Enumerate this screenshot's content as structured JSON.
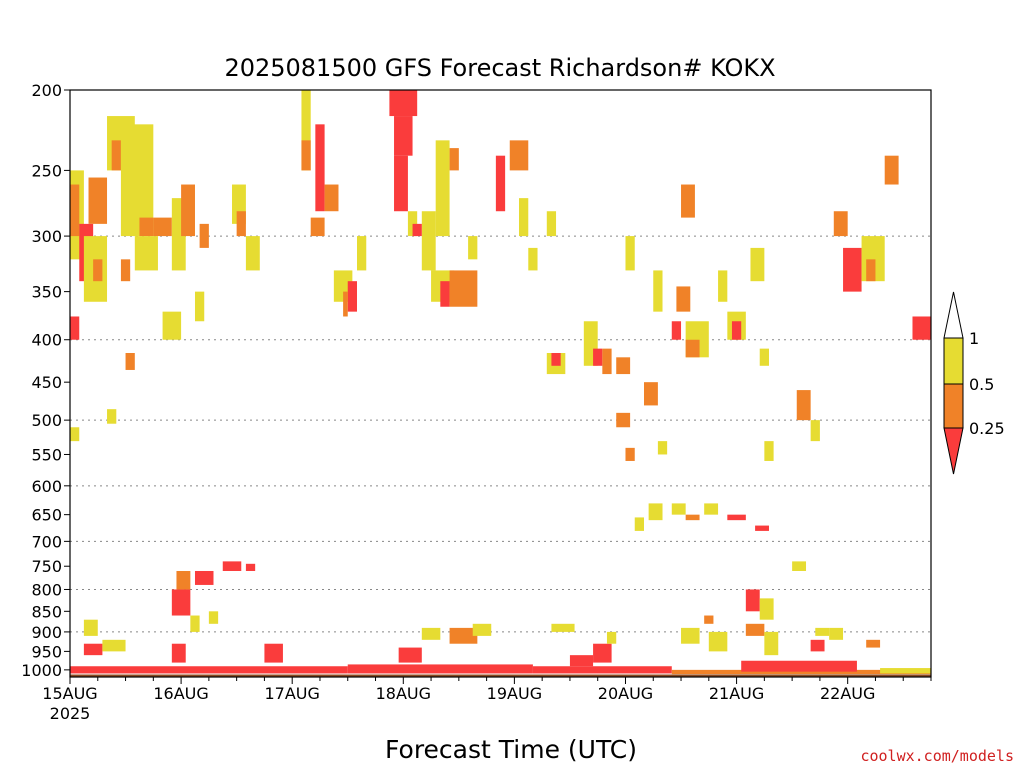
{
  "chart_data": {
    "type": "heatmap",
    "title": "2025081500 GFS Forecast Richardson# KOKX",
    "xlabel": "Forecast Time (UTC)",
    "credit": "coolwx.com/models",
    "y_levels": [
      200,
      250,
      300,
      350,
      400,
      450,
      500,
      550,
      600,
      650,
      700,
      750,
      800,
      850,
      900,
      950,
      1000
    ],
    "y_tick_labels": [
      "200",
      "250",
      "300",
      "350",
      "400",
      "450",
      "500",
      "550",
      "600",
      "650",
      "700",
      "750",
      "800",
      "850",
      "900",
      "950",
      "1000"
    ],
    "y_dotted_levels": [
      300,
      400,
      500,
      600,
      700,
      800,
      900
    ],
    "ylim": [
      1020,
      200
    ],
    "x_ticks": [
      {
        "label": "15AUG",
        "sublabel": "2025",
        "hour": 0
      },
      {
        "label": "16AUG",
        "hour": 24
      },
      {
        "label": "17AUG",
        "hour": 48
      },
      {
        "label": "18AUG",
        "hour": 72
      },
      {
        "label": "19AUG",
        "hour": 96
      },
      {
        "label": "20AUG",
        "hour": 120
      },
      {
        "label": "21AUG",
        "hour": 144
      },
      {
        "label": "22AUG",
        "hour": 168
      }
    ],
    "xlim_hours": [
      0,
      186
    ],
    "legend": {
      "placement": "right",
      "labels": [
        "1",
        "0.5",
        "0.25"
      ],
      "colors": [
        "#ffffff",
        "#e6dc32",
        "#f08228",
        "#fa3c3c"
      ]
    },
    "colors": {
      "lt_025": "#fa3c3c",
      "r025_05": "#f08228",
      "r05_1": "#e6dc32",
      "ground": "#8b4a22"
    },
    "ground_top_hpa": 1013,
    "cells": [
      {
        "h0": 0,
        "h1": 3,
        "p0": 250,
        "p1": 320,
        "c": "r05_1"
      },
      {
        "h0": 0,
        "h1": 2,
        "p0": 260,
        "p1": 300,
        "c": "r025_05"
      },
      {
        "h0": 2,
        "h1": 5,
        "p0": 290,
        "p1": 340,
        "c": "lt_025"
      },
      {
        "h0": 4,
        "h1": 8,
        "p0": 255,
        "p1": 290,
        "c": "r025_05"
      },
      {
        "h0": 3,
        "h1": 8,
        "p0": 300,
        "p1": 360,
        "c": "r05_1"
      },
      {
        "h0": 5,
        "h1": 7,
        "p0": 320,
        "p1": 340,
        "c": "r025_05"
      },
      {
        "h0": 8,
        "h1": 14,
        "p0": 215,
        "p1": 250,
        "c": "r05_1"
      },
      {
        "h0": 9,
        "h1": 11,
        "p0": 230,
        "p1": 250,
        "c": "r025_05"
      },
      {
        "h0": 11,
        "h1": 18,
        "p0": 220,
        "p1": 300,
        "c": "r05_1"
      },
      {
        "h0": 15,
        "h1": 18,
        "p0": 285,
        "p1": 300,
        "c": "r025_05"
      },
      {
        "h0": 18,
        "h1": 22,
        "p0": 285,
        "p1": 300,
        "c": "r025_05"
      },
      {
        "h0": 14,
        "h1": 19,
        "p0": 300,
        "p1": 330,
        "c": "r05_1"
      },
      {
        "h0": 11,
        "h1": 13,
        "p0": 320,
        "p1": 340,
        "c": "r025_05"
      },
      {
        "h0": 22,
        "h1": 25,
        "p0": 270,
        "p1": 330,
        "c": "r05_1"
      },
      {
        "h0": 24,
        "h1": 27,
        "p0": 260,
        "p1": 300,
        "c": "r025_05"
      },
      {
        "h0": 28,
        "h1": 30,
        "p0": 290,
        "p1": 310,
        "c": "r025_05"
      },
      {
        "h0": 20,
        "h1": 24,
        "p0": 370,
        "p1": 400,
        "c": "r05_1"
      },
      {
        "h0": 27,
        "h1": 29,
        "p0": 350,
        "p1": 380,
        "c": "r05_1"
      },
      {
        "h0": 35,
        "h1": 38,
        "p0": 260,
        "p1": 290,
        "c": "r05_1"
      },
      {
        "h0": 36,
        "h1": 38,
        "p0": 280,
        "p1": 300,
        "c": "r025_05"
      },
      {
        "h0": 38,
        "h1": 41,
        "p0": 300,
        "p1": 330,
        "c": "r05_1"
      },
      {
        "h0": 12,
        "h1": 14,
        "p0": 415,
        "p1": 435,
        "c": "r025_05"
      },
      {
        "h0": 0,
        "h1": 2,
        "p0": 375,
        "p1": 400,
        "c": "lt_025"
      },
      {
        "h0": 0,
        "h1": 2,
        "p0": 510,
        "p1": 530,
        "c": "r05_1"
      },
      {
        "h0": 8,
        "h1": 10,
        "p0": 485,
        "p1": 505,
        "c": "r05_1"
      },
      {
        "h0": 50,
        "h1": 52,
        "p0": 200,
        "p1": 250,
        "c": "r05_1"
      },
      {
        "h0": 50,
        "h1": 52,
        "p0": 230,
        "p1": 250,
        "c": "r025_05"
      },
      {
        "h0": 53,
        "h1": 55,
        "p0": 220,
        "p1": 280,
        "c": "lt_025"
      },
      {
        "h0": 55,
        "h1": 58,
        "p0": 260,
        "p1": 280,
        "c": "r025_05"
      },
      {
        "h0": 52,
        "h1": 55,
        "p0": 285,
        "p1": 300,
        "c": "r025_05"
      },
      {
        "h0": 57,
        "h1": 61,
        "p0": 330,
        "p1": 360,
        "c": "r05_1"
      },
      {
        "h0": 60,
        "h1": 62,
        "p0": 340,
        "p1": 370,
        "c": "lt_025"
      },
      {
        "h0": 59,
        "h1": 60,
        "p0": 350,
        "p1": 375,
        "c": "r025_05"
      },
      {
        "h0": 62,
        "h1": 64,
        "p0": 300,
        "p1": 330,
        "c": "r05_1"
      },
      {
        "h0": 69,
        "h1": 75,
        "p0": 200,
        "p1": 215,
        "c": "lt_025"
      },
      {
        "h0": 70,
        "h1": 74,
        "p0": 215,
        "p1": 240,
        "c": "lt_025"
      },
      {
        "h0": 70,
        "h1": 73,
        "p0": 240,
        "p1": 280,
        "c": "lt_025"
      },
      {
        "h0": 73,
        "h1": 75,
        "p0": 280,
        "p1": 300,
        "c": "r05_1"
      },
      {
        "h0": 76,
        "h1": 79,
        "p0": 280,
        "p1": 330,
        "c": "r05_1"
      },
      {
        "h0": 74,
        "h1": 76,
        "p0": 290,
        "p1": 300,
        "c": "lt_025"
      },
      {
        "h0": 79,
        "h1": 82,
        "p0": 230,
        "p1": 300,
        "c": "r05_1"
      },
      {
        "h0": 82,
        "h1": 84,
        "p0": 235,
        "p1": 250,
        "c": "r025_05"
      },
      {
        "h0": 78,
        "h1": 83,
        "p0": 330,
        "p1": 360,
        "c": "r05_1"
      },
      {
        "h0": 80,
        "h1": 82,
        "p0": 340,
        "p1": 365,
        "c": "lt_025"
      },
      {
        "h0": 82,
        "h1": 88,
        "p0": 330,
        "p1": 365,
        "c": "r025_05"
      },
      {
        "h0": 86,
        "h1": 88,
        "p0": 300,
        "p1": 320,
        "c": "r05_1"
      },
      {
        "h0": 92,
        "h1": 94,
        "p0": 240,
        "p1": 280,
        "c": "lt_025"
      },
      {
        "h0": 95,
        "h1": 99,
        "p0": 230,
        "p1": 250,
        "c": "r025_05"
      },
      {
        "h0": 97,
        "h1": 99,
        "p0": 270,
        "p1": 300,
        "c": "r05_1"
      },
      {
        "h0": 103,
        "h1": 105,
        "p0": 280,
        "p1": 300,
        "c": "r05_1"
      },
      {
        "h0": 99,
        "h1": 101,
        "p0": 310,
        "p1": 330,
        "c": "r05_1"
      },
      {
        "h0": 103,
        "h1": 107,
        "p0": 415,
        "p1": 440,
        "c": "r05_1"
      },
      {
        "h0": 104,
        "h1": 106,
        "p0": 415,
        "p1": 430,
        "c": "lt_025"
      },
      {
        "h0": 111,
        "h1": 114,
        "p0": 380,
        "p1": 430,
        "c": "r05_1"
      },
      {
        "h0": 113,
        "h1": 115,
        "p0": 410,
        "p1": 430,
        "c": "lt_025"
      },
      {
        "h0": 115,
        "h1": 117,
        "p0": 410,
        "p1": 440,
        "c": "r025_05"
      },
      {
        "h0": 118,
        "h1": 121,
        "p0": 420,
        "p1": 440,
        "c": "r025_05"
      },
      {
        "h0": 120,
        "h1": 122,
        "p0": 300,
        "p1": 330,
        "c": "r05_1"
      },
      {
        "h0": 118,
        "h1": 121,
        "p0": 490,
        "p1": 510,
        "c": "r025_05"
      },
      {
        "h0": 124,
        "h1": 127,
        "p0": 450,
        "p1": 480,
        "c": "r025_05"
      },
      {
        "h0": 127,
        "h1": 129,
        "p0": 530,
        "p1": 550,
        "c": "r05_1"
      },
      {
        "h0": 126,
        "h1": 128,
        "p0": 330,
        "p1": 370,
        "c": "r05_1"
      },
      {
        "h0": 120,
        "h1": 122,
        "p0": 540,
        "p1": 560,
        "c": "r025_05"
      },
      {
        "h0": 132,
        "h1": 135,
        "p0": 260,
        "p1": 285,
        "c": "r025_05"
      },
      {
        "h0": 131,
        "h1": 134,
        "p0": 345,
        "p1": 370,
        "c": "r025_05"
      },
      {
        "h0": 130,
        "h1": 132,
        "p0": 380,
        "p1": 400,
        "c": "lt_025"
      },
      {
        "h0": 133,
        "h1": 138,
        "p0": 380,
        "p1": 420,
        "c": "r05_1"
      },
      {
        "h0": 133,
        "h1": 136,
        "p0": 400,
        "p1": 420,
        "c": "r025_05"
      },
      {
        "h0": 140,
        "h1": 142,
        "p0": 330,
        "p1": 360,
        "c": "r05_1"
      },
      {
        "h0": 142,
        "h1": 146,
        "p0": 370,
        "p1": 400,
        "c": "r05_1"
      },
      {
        "h0": 143,
        "h1": 145,
        "p0": 380,
        "p1": 400,
        "c": "lt_025"
      },
      {
        "h0": 147,
        "h1": 150,
        "p0": 310,
        "p1": 340,
        "c": "r05_1"
      },
      {
        "h0": 149,
        "h1": 151,
        "p0": 410,
        "p1": 430,
        "c": "r05_1"
      },
      {
        "h0": 150,
        "h1": 152,
        "p0": 530,
        "p1": 560,
        "c": "r05_1"
      },
      {
        "h0": 142,
        "h1": 146,
        "p0": 650,
        "p1": 660,
        "c": "lt_025"
      },
      {
        "h0": 148,
        "h1": 151,
        "p0": 670,
        "p1": 680,
        "c": "lt_025"
      },
      {
        "h0": 157,
        "h1": 160,
        "p0": 460,
        "p1": 500,
        "c": "r025_05"
      },
      {
        "h0": 160,
        "h1": 162,
        "p0": 500,
        "p1": 530,
        "c": "r05_1"
      },
      {
        "h0": 165,
        "h1": 168,
        "p0": 280,
        "p1": 300,
        "c": "r025_05"
      },
      {
        "h0": 167,
        "h1": 171,
        "p0": 310,
        "p1": 350,
        "c": "lt_025"
      },
      {
        "h0": 171,
        "h1": 176,
        "p0": 300,
        "p1": 340,
        "c": "r05_1"
      },
      {
        "h0": 172,
        "h1": 174,
        "p0": 320,
        "p1": 340,
        "c": "r025_05"
      },
      {
        "h0": 176,
        "h1": 179,
        "p0": 240,
        "p1": 260,
        "c": "r025_05"
      },
      {
        "h0": 182,
        "h1": 186,
        "p0": 375,
        "p1": 400,
        "c": "lt_025"
      },
      {
        "h0": 3,
        "h1": 6,
        "p0": 870,
        "p1": 910,
        "c": "r05_1"
      },
      {
        "h0": 3,
        "h1": 7,
        "p0": 930,
        "p1": 960,
        "c": "lt_025"
      },
      {
        "h0": 7,
        "h1": 12,
        "p0": 920,
        "p1": 950,
        "c": "r05_1"
      },
      {
        "h0": 22,
        "h1": 26,
        "p0": 800,
        "p1": 860,
        "c": "lt_025"
      },
      {
        "h0": 23,
        "h1": 26,
        "p0": 760,
        "p1": 800,
        "c": "r025_05"
      },
      {
        "h0": 27,
        "h1": 31,
        "p0": 760,
        "p1": 790,
        "c": "lt_025"
      },
      {
        "h0": 33,
        "h1": 37,
        "p0": 740,
        "p1": 760,
        "c": "lt_025"
      },
      {
        "h0": 38,
        "h1": 40,
        "p0": 745,
        "p1": 760,
        "c": "lt_025"
      },
      {
        "h0": 26,
        "h1": 28,
        "p0": 860,
        "p1": 900,
        "c": "r05_1"
      },
      {
        "h0": 22,
        "h1": 25,
        "p0": 930,
        "p1": 980,
        "c": "lt_025"
      },
      {
        "h0": 30,
        "h1": 32,
        "p0": 850,
        "p1": 880,
        "c": "r05_1"
      },
      {
        "h0": 42,
        "h1": 46,
        "p0": 930,
        "p1": 980,
        "c": "lt_025"
      },
      {
        "h0": 71,
        "h1": 76,
        "p0": 940,
        "p1": 980,
        "c": "lt_025"
      },
      {
        "h0": 76,
        "h1": 80,
        "p0": 890,
        "p1": 920,
        "c": "r05_1"
      },
      {
        "h0": 82,
        "h1": 88,
        "p0": 890,
        "p1": 930,
        "c": "r025_05"
      },
      {
        "h0": 87,
        "h1": 91,
        "p0": 880,
        "p1": 910,
        "c": "r05_1"
      },
      {
        "h0": 104,
        "h1": 109,
        "p0": 880,
        "p1": 900,
        "c": "r05_1"
      },
      {
        "h0": 113,
        "h1": 117,
        "p0": 930,
        "p1": 980,
        "c": "lt_025"
      },
      {
        "h0": 108,
        "h1": 113,
        "p0": 960,
        "p1": 990,
        "c": "lt_025"
      },
      {
        "h0": 116,
        "h1": 118,
        "p0": 900,
        "p1": 930,
        "c": "r05_1"
      },
      {
        "h0": 125,
        "h1": 128,
        "p0": 630,
        "p1": 660,
        "c": "r05_1"
      },
      {
        "h0": 130,
        "h1": 133,
        "p0": 630,
        "p1": 650,
        "c": "r05_1"
      },
      {
        "h0": 137,
        "h1": 140,
        "p0": 630,
        "p1": 650,
        "c": "r05_1"
      },
      {
        "h0": 133,
        "h1": 136,
        "p0": 650,
        "p1": 660,
        "c": "r025_05"
      },
      {
        "h0": 122,
        "h1": 124,
        "p0": 655,
        "p1": 680,
        "c": "r05_1"
      },
      {
        "h0": 132,
        "h1": 136,
        "p0": 890,
        "p1": 930,
        "c": "r05_1"
      },
      {
        "h0": 138,
        "h1": 142,
        "p0": 900,
        "p1": 950,
        "c": "r05_1"
      },
      {
        "h0": 137,
        "h1": 139,
        "p0": 860,
        "p1": 880,
        "c": "r025_05"
      },
      {
        "h0": 146,
        "h1": 149,
        "p0": 800,
        "p1": 850,
        "c": "lt_025"
      },
      {
        "h0": 149,
        "h1": 152,
        "p0": 820,
        "p1": 870,
        "c": "r05_1"
      },
      {
        "h0": 146,
        "h1": 150,
        "p0": 880,
        "p1": 910,
        "c": "r025_05"
      },
      {
        "h0": 150,
        "h1": 153,
        "p0": 900,
        "p1": 960,
        "c": "r05_1"
      },
      {
        "h0": 160,
        "h1": 163,
        "p0": 920,
        "p1": 950,
        "c": "lt_025"
      },
      {
        "h0": 161,
        "h1": 164,
        "p0": 890,
        "p1": 910,
        "c": "r05_1"
      },
      {
        "h0": 164,
        "h1": 167,
        "p0": 890,
        "p1": 920,
        "c": "r05_1"
      },
      {
        "h0": 172,
        "h1": 175,
        "p0": 920,
        "p1": 940,
        "c": "r025_05"
      },
      {
        "h0": 156,
        "h1": 159,
        "p0": 740,
        "p1": 760,
        "c": "r05_1"
      },
      {
        "h0": 0,
        "h1": 60,
        "p0": 990,
        "p1": 1010,
        "c": "lt_025"
      },
      {
        "h0": 60,
        "h1": 100,
        "p0": 985,
        "p1": 1010,
        "c": "lt_025"
      },
      {
        "h0": 100,
        "h1": 130,
        "p0": 990,
        "p1": 1010,
        "c": "lt_025"
      },
      {
        "h0": 130,
        "h1": 186,
        "p0": 1000,
        "p1": 1012,
        "c": "r025_05"
      },
      {
        "h0": 145,
        "h1": 170,
        "p0": 975,
        "p1": 1005,
        "c": "lt_025"
      },
      {
        "h0": 175,
        "h1": 186,
        "p0": 995,
        "p1": 1010,
        "c": "r05_1"
      }
    ]
  }
}
